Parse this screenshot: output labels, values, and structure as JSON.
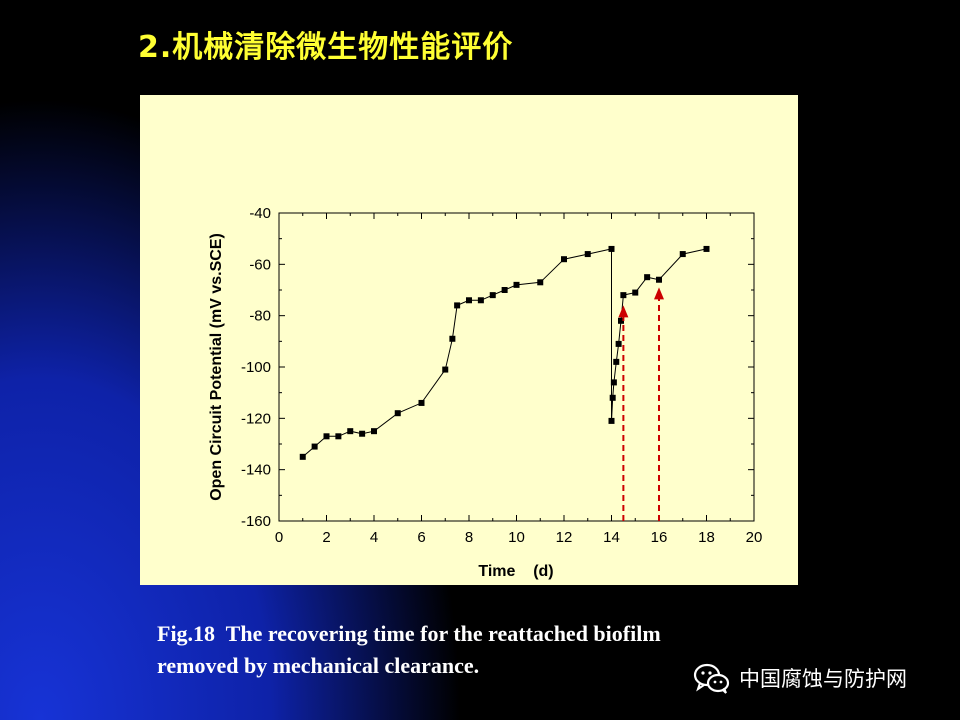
{
  "slide": {
    "title": "2.机械清除微生物性能评价",
    "caption_line1": "Fig.18  The recovering time for the reattached biofilm",
    "caption_line2": "removed by mechanical clearance.",
    "watermark": "中国腐蚀与防护网"
  },
  "colors": {
    "slide_bg": "#000000",
    "accent_blue": "#1230c8",
    "title": "#ffff33",
    "chart_bg": "#ffffcc",
    "series": "#000000",
    "arrow": "#cc0000"
  },
  "chart_data": {
    "type": "line",
    "title": "",
    "xlabel": "Time    (d)",
    "ylabel": "Open Circuit Potential (mV vs.SCE)",
    "xlim": [
      0,
      20
    ],
    "ylim": [
      -160,
      -40
    ],
    "x_ticks": [
      "0",
      "2",
      "4",
      "6",
      "8",
      "10",
      "12",
      "14",
      "16",
      "18",
      "20"
    ],
    "y_ticks": [
      "-40",
      "-60",
      "-80",
      "-100",
      "-120",
      "-140",
      "-160"
    ],
    "grid": false,
    "legend": "none",
    "marker": "square",
    "series": [
      {
        "x": [
          1,
          1.5,
          2,
          2.5,
          3,
          3.5,
          4,
          5,
          6,
          7,
          7.3,
          7.5,
          8,
          8.5,
          9,
          9.5,
          10,
          11,
          12,
          13,
          14,
          14.0,
          14.05,
          14.1,
          14.2,
          14.3,
          14.4,
          14.5,
          15,
          15.5,
          16,
          17,
          18
        ],
        "y": [
          -135,
          -131,
          -127,
          -127,
          -125,
          -126,
          -125,
          -118,
          -114,
          -101,
          -89,
          -76,
          -74,
          -74,
          -72,
          -70,
          -68,
          -67,
          -58,
          -56,
          -54,
          -121,
          -112,
          -106,
          -98,
          -91,
          -82,
          -72,
          -71,
          -65,
          -66,
          -56,
          -54
        ]
      }
    ],
    "annotations": [
      {
        "type": "dashed-arrow",
        "x": 14.5,
        "from_y": -160,
        "to_y": -76
      },
      {
        "type": "dashed-arrow",
        "x": 16,
        "from_y": -160,
        "to_y": -69
      }
    ]
  }
}
